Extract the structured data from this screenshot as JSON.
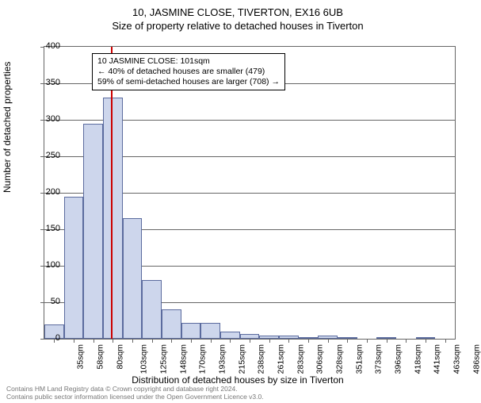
{
  "titles": {
    "line1": "10, JASMINE CLOSE, TIVERTON, EX16 6UB",
    "line2": "Size of property relative to detached houses in Tiverton"
  },
  "axes": {
    "ylabel": "Number of detached properties",
    "xlabel": "Distribution of detached houses by size in Tiverton",
    "ylim": [
      0,
      400
    ],
    "ytick_step": 50,
    "yticks": [
      0,
      50,
      100,
      150,
      200,
      250,
      300,
      350,
      400
    ]
  },
  "annotation": {
    "line1": "10 JASMINE CLOSE: 101sqm",
    "line2": "← 40% of detached houses are smaller (479)",
    "line3": "59% of semi-detached houses are larger (708) →"
  },
  "ref_line_x_index": 2.9,
  "chart": {
    "type": "histogram",
    "bar_fill": "#cdd6ec",
    "bar_stroke": "#5b6b9e",
    "background": "#ffffff",
    "categories": [
      "35sqm",
      "58sqm",
      "80sqm",
      "103sqm",
      "125sqm",
      "148sqm",
      "170sqm",
      "193sqm",
      "215sqm",
      "238sqm",
      "261sqm",
      "283sqm",
      "306sqm",
      "328sqm",
      "351sqm",
      "373sqm",
      "396sqm",
      "418sqm",
      "441sqm",
      "463sqm",
      "486sqm"
    ],
    "values": [
      20,
      195,
      295,
      330,
      165,
      80,
      40,
      22,
      22,
      10,
      6,
      4,
      4,
      1,
      4,
      1,
      0,
      1,
      0,
      1,
      0
    ]
  },
  "footer": {
    "line1": "Contains HM Land Registry data © Crown copyright and database right 2024.",
    "line2": "Contains public sector information licensed under the Open Government Licence v3.0."
  }
}
